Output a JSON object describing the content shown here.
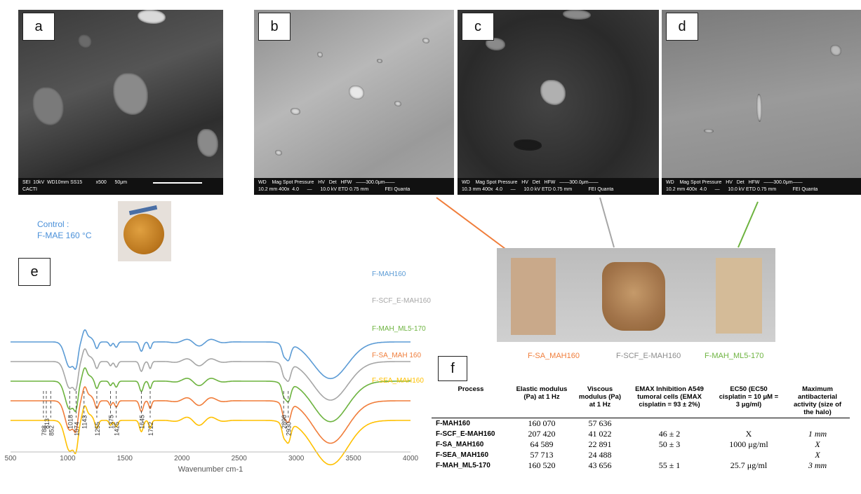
{
  "panels": {
    "a": {
      "label": "a",
      "info_line1": "SEI  10kV  WD10mm SS15          x500      50μm",
      "info_line2": "CACTI"
    },
    "b": {
      "label": "b",
      "info_line1": "WD    Mag Spot Pressure   HV   Det   HFW   ——300.0μm——",
      "info_line2": "10.2 mm 400x  4.0      —      10.0 kV ETD 0.75 mm            FEI Quanta"
    },
    "c": {
      "label": "c",
      "info_line1": "WD    Mag Spot Pressure   HV   Det   HFW   ——300.0μm——",
      "info_line2": "10.3 mm 400x  4.0      —      10.0 kV ETD 0.75 mm            FEI Quanta"
    },
    "d": {
      "label": "d",
      "info_line1": "WD    Mag Spot Pressure   HV   Det   HFW   ——300.0μm——",
      "info_line2": "10.2 mm 400x  4.0      —      10.0 kV ETD 0.75 mm            FEI Quanta"
    },
    "e": {
      "label": "e"
    },
    "f": {
      "label": "f"
    }
  },
  "control": {
    "line1": "Control :",
    "line2": "F-MAE 160 °C"
  },
  "film_labels": [
    {
      "text": "F-SA_MAH160",
      "color": "#f07d3a"
    },
    {
      "text": "F-SCF_E-MAH160",
      "color": "#8c8c8c"
    },
    {
      "text": "F-MAH_ML5-170",
      "color": "#6db33f"
    }
  ],
  "colors": {
    "orange": "#f07d3a",
    "gray": "#a6a6a6",
    "green": "#6db33f",
    "blue": "#5b9bd5",
    "yellow": "#ffc000",
    "control_text": "#4a90d9"
  },
  "chart_data": {
    "type": "line",
    "xlabel": "Wavenumber cm-1",
    "ylabel": "",
    "xlim": [
      500,
      4000
    ],
    "xticks": [
      500,
      1000,
      1500,
      2000,
      2500,
      3000,
      3500,
      4000
    ],
    "series": [
      {
        "name": "F-MAH160",
        "color": "#5b9bd5",
        "offset": 4
      },
      {
        "name": "F-SCF_E-MAH160",
        "color": "#a6a6a6",
        "offset": 3
      },
      {
        "name": "F-MAH_ML5-170",
        "color": "#6db33f",
        "offset": 2
      },
      {
        "name": "F-SA_MAH 160",
        "color": "#f07d3a",
        "offset": 1
      },
      {
        "name": "F-SEA_MAH160",
        "color": "#ffc000",
        "offset": 0
      }
    ],
    "peak_labels": [
      788,
      813,
      852,
      1018,
      1074,
      1143,
      1255,
      1375,
      1425,
      1645,
      1722,
      2890,
      2930
    ]
  },
  "table": {
    "headers": [
      "Process",
      "Elastic modulus (Pa) at 1 Hz",
      "Viscous modulus (Pa) at 1 Hz",
      "EMAX Inhibition A549 tumoral cells (EMAX cisplatin = 93 ± 2%)",
      "EC50 (EC50 cisplatin = 10 μM = 3 μg/ml)",
      "Maximum antibacterial activity (size of the halo)"
    ],
    "rows": [
      [
        "F-MAH160",
        "160 070",
        "57 636",
        "",
        "",
        ""
      ],
      [
        "F-SCF_E-MAH160",
        "207 420",
        "41 022",
        "46 ± 2",
        "X",
        "1 mm"
      ],
      [
        "F-SA_MAH160",
        "64 589",
        "22 891",
        "50 ± 3",
        "1000 μg/ml",
        "X"
      ],
      [
        "F-SEA_MAH160",
        "57 713",
        "24 488",
        "",
        "",
        "X"
      ],
      [
        "F-MAH_ML5-170",
        "160 520",
        "43 656",
        "55 ± 1",
        "25.7 μg/ml",
        "3 mm"
      ]
    ]
  }
}
